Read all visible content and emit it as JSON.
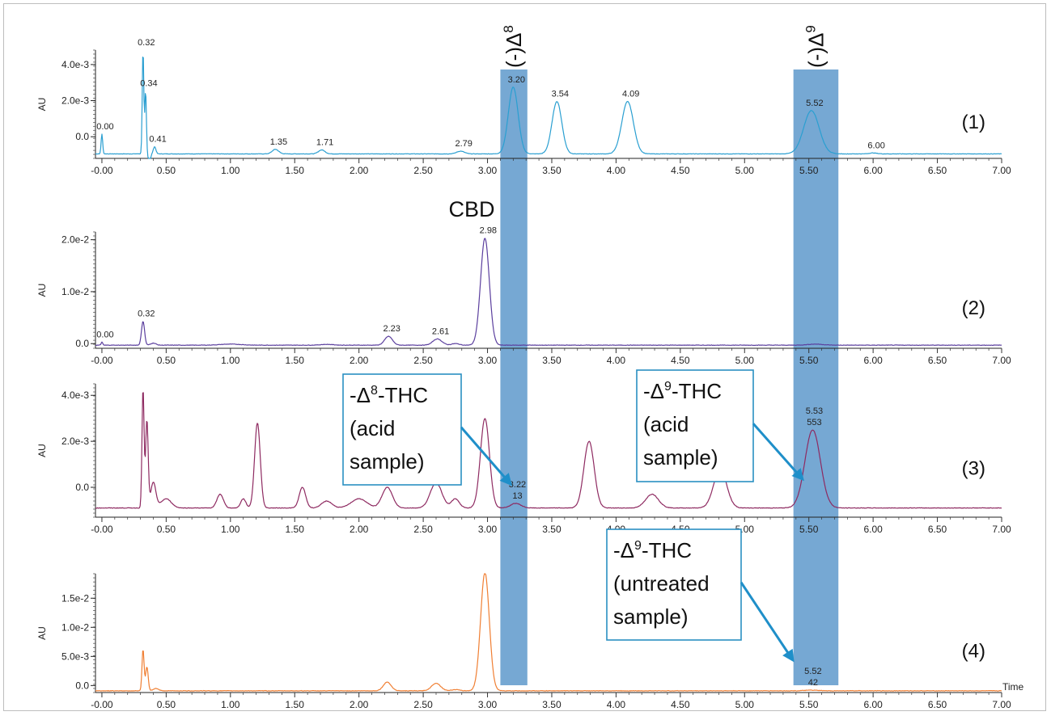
{
  "chart_data": {
    "type": "line",
    "x_axis": {
      "label": "Time",
      "range": [
        -0.05,
        7.0
      ],
      "ticks": [
        "-0.00",
        "0.50",
        "1.00",
        "1.50",
        "2.00",
        "2.50",
        "3.00",
        "3.50",
        "4.00",
        "4.50",
        "5.00",
        "5.50",
        "6.00",
        "6.50",
        "7.00"
      ]
    },
    "highlight_bands": [
      {
        "label": "(-)Δ8",
        "superscript": "8",
        "x_range": [
          3.1,
          3.31
        ]
      },
      {
        "label": "(-)Δ9",
        "superscript": "9",
        "x_range": [
          5.38,
          5.73
        ]
      }
    ],
    "panels": [
      {
        "id": "1",
        "tag": "(1)",
        "ylabel": "AU",
        "color": "#2a9fd1",
        "ylim": [
          -0.0012,
          0.0048
        ],
        "yticks": [
          {
            "v": 0.0,
            "t": "0.0"
          },
          {
            "v": 0.002,
            "t": "2.0e-3"
          },
          {
            "v": 0.004,
            "t": "4.0e-3"
          }
        ],
        "baseline": -0.00095,
        "peaks": [
          {
            "x": 0.0,
            "h": 0.0011,
            "w": 0.006,
            "label": "0.00"
          },
          {
            "x": 0.32,
            "h": 0.0058,
            "w": 0.006,
            "label": "0.32"
          },
          {
            "x": 0.34,
            "h": 0.0035,
            "w": 0.006,
            "label": "0.34"
          },
          {
            "x": 0.37,
            "h": -0.0006,
            "w": 0.008
          },
          {
            "x": 0.41,
            "h": 0.0004,
            "w": 0.01,
            "label": "0.41"
          },
          {
            "x": 1.35,
            "h": 0.00025,
            "w": 0.025,
            "label": "1.35"
          },
          {
            "x": 1.71,
            "h": 0.00022,
            "w": 0.025,
            "label": "1.71"
          },
          {
            "x": 2.79,
            "h": 0.00015,
            "w": 0.03,
            "label": "2.79"
          },
          {
            "x": 3.2,
            "h": 0.0037,
            "w": 0.038,
            "label": "3.20"
          },
          {
            "x": 3.54,
            "h": 0.0029,
            "w": 0.038,
            "label": "3.54"
          },
          {
            "x": 4.09,
            "h": 0.0029,
            "w": 0.045,
            "label": "4.09"
          },
          {
            "x": 5.52,
            "h": 0.0024,
            "w": 0.06,
            "label": "5.52"
          },
          {
            "x": 6.0,
            "h": 5e-05,
            "w": 0.03,
            "label": "6.00"
          }
        ]
      },
      {
        "id": "2",
        "tag": "(2)",
        "ylabel": "AU",
        "color": "#5b3f9e",
        "ylim": [
          -0.0009,
          0.0215
        ],
        "yticks": [
          {
            "v": 0.0,
            "t": "0.0"
          },
          {
            "v": 0.01,
            "t": "1.0e-2"
          },
          {
            "v": 0.02,
            "t": "2.0e-2"
          }
        ],
        "baseline": -0.0003,
        "peaks": [
          {
            "x": 0.0,
            "h": 0.0006,
            "w": 0.006,
            "label": "0.00"
          },
          {
            "x": 0.32,
            "h": 0.0046,
            "w": 0.012,
            "label": "0.32"
          },
          {
            "x": 0.4,
            "h": 0.0004,
            "w": 0.02
          },
          {
            "x": 1.0,
            "h": 0.0002,
            "w": 0.08
          },
          {
            "x": 1.75,
            "h": 0.00015,
            "w": 0.05
          },
          {
            "x": 2.23,
            "h": 0.0017,
            "w": 0.03,
            "label": "2.23"
          },
          {
            "x": 2.61,
            "h": 0.0012,
            "w": 0.035,
            "label": "2.61"
          },
          {
            "x": 2.75,
            "h": 0.0003,
            "w": 0.03
          },
          {
            "x": 2.98,
            "h": 0.0206,
            "w": 0.034,
            "label": "2.98"
          },
          {
            "x": 5.55,
            "h": 0.0002,
            "w": 0.06
          }
        ]
      },
      {
        "id": "3",
        "tag": "(3)",
        "ylabel": "AU",
        "color": "#8e2a61",
        "ylim": [
          -0.0013,
          0.0045
        ],
        "yticks": [
          {
            "v": 0.0,
            "t": "0.0"
          },
          {
            "v": 0.002,
            "t": "2.0e-3"
          },
          {
            "v": 0.004,
            "t": "4.0e-3"
          }
        ],
        "baseline": -0.0009,
        "peaks": [
          {
            "x": 0.32,
            "h": 0.0052,
            "w": 0.008
          },
          {
            "x": 0.35,
            "h": 0.0038,
            "w": 0.01
          },
          {
            "x": 0.4,
            "h": 0.0011,
            "w": 0.02
          },
          {
            "x": 0.5,
            "h": 0.0004,
            "w": 0.04
          },
          {
            "x": 0.92,
            "h": 0.0006,
            "w": 0.025
          },
          {
            "x": 1.1,
            "h": 0.0004,
            "w": 0.02
          },
          {
            "x": 1.21,
            "h": 0.0037,
            "w": 0.022
          },
          {
            "x": 1.56,
            "h": 0.0009,
            "w": 0.025
          },
          {
            "x": 1.75,
            "h": 0.0003,
            "w": 0.04
          },
          {
            "x": 2.0,
            "h": 0.0004,
            "w": 0.06
          },
          {
            "x": 2.22,
            "h": 0.0009,
            "w": 0.04
          },
          {
            "x": 2.6,
            "h": 0.0011,
            "w": 0.045
          },
          {
            "x": 2.75,
            "h": 0.0004,
            "w": 0.03
          },
          {
            "x": 2.98,
            "h": 0.0039,
            "w": 0.035
          },
          {
            "x": 3.22,
            "h": 0.0002,
            "w": 0.04,
            "label": "3.22",
            "label2": "13"
          },
          {
            "x": 3.79,
            "h": 0.0029,
            "w": 0.04
          },
          {
            "x": 4.28,
            "h": 0.0006,
            "w": 0.05
          },
          {
            "x": 4.81,
            "h": 0.0017,
            "w": 0.05
          },
          {
            "x": 5.53,
            "h": 0.0034,
            "w": 0.06,
            "label": "5.53",
            "label2": "553"
          }
        ]
      },
      {
        "id": "4",
        "tag": "(4)",
        "ylabel": "AU",
        "color": "#f07f33",
        "ylim": [
          -0.0012,
          0.0192
        ],
        "yticks": [
          {
            "v": 0.0,
            "t": "0.0"
          },
          {
            "v": 0.005,
            "t": "5.0e-3"
          },
          {
            "v": 0.01,
            "t": "1.0e-2"
          },
          {
            "v": 0.015,
            "t": "1.5e-2"
          }
        ],
        "baseline": -0.0009,
        "peaks": [
          {
            "x": 0.32,
            "h": 0.0071,
            "w": 0.008
          },
          {
            "x": 0.35,
            "h": 0.0041,
            "w": 0.01
          },
          {
            "x": 0.42,
            "h": 0.0004,
            "w": 0.02
          },
          {
            "x": 2.22,
            "h": 0.0015,
            "w": 0.03
          },
          {
            "x": 2.6,
            "h": 0.0013,
            "w": 0.035
          },
          {
            "x": 2.75,
            "h": 0.0002,
            "w": 0.03
          },
          {
            "x": 2.98,
            "h": 0.0203,
            "w": 0.034
          },
          {
            "x": 5.52,
            "h": 0.0001,
            "w": 0.05,
            "label": "5.52",
            "label2": "42"
          }
        ]
      }
    ],
    "annotations": [
      {
        "id": "cbd",
        "text": "CBD"
      },
      {
        "id": "a3-d8",
        "line1_prefix": "-Δ",
        "line1_sup": "8",
        "line1_suffix": "-THC",
        "line2": "(acid",
        "line3": "sample)"
      },
      {
        "id": "a3-d9",
        "line1_prefix": "-Δ",
        "line1_sup": "9",
        "line1_suffix": "-THC",
        "line2": "(acid",
        "line3": "sample)"
      },
      {
        "id": "a4-d9",
        "line1_prefix": "-Δ",
        "line1_sup": "9",
        "line1_suffix": "-THC",
        "line2": "(untreated",
        "line3": "sample)"
      }
    ],
    "colors": {
      "band": "#4f8fc6",
      "callout_border": "#2a8fc2",
      "arrow": "#1f8fc9"
    }
  }
}
